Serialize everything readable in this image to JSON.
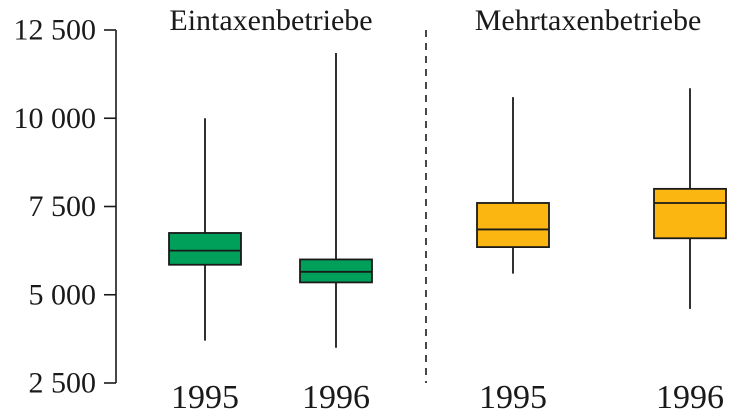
{
  "chart_data": {
    "type": "box",
    "ylim": [
      2500,
      12500
    ],
    "yticks": [
      {
        "value": 2500,
        "label": "2 500"
      },
      {
        "value": 5000,
        "label": "5 000"
      },
      {
        "value": 7500,
        "label": "7 500"
      },
      {
        "value": 10000,
        "label": "10 000"
      },
      {
        "value": 12500,
        "label": "12 500"
      }
    ],
    "panels": [
      {
        "title": "Eintaxenbetriebe",
        "color": "#00a05a",
        "boxes": [
          {
            "category": "1995",
            "whisker_low": 3700,
            "q1": 5850,
            "median": 6250,
            "q3": 6750,
            "whisker_high": 10000
          },
          {
            "category": "1996",
            "whisker_low": 3500,
            "q1": 5350,
            "median": 5650,
            "q3": 6000,
            "whisker_high": 11850
          }
        ]
      },
      {
        "title": "Mehrtaxenbetriebe",
        "color": "#fbb612",
        "boxes": [
          {
            "category": "1995",
            "whisker_low": 5600,
            "q1": 6350,
            "median": 6850,
            "q3": 7600,
            "whisker_high": 10600
          },
          {
            "category": "1996",
            "whisker_low": 4600,
            "q1": 6600,
            "median": 7600,
            "q3": 8000,
            "whisker_high": 10850
          }
        ]
      }
    ]
  }
}
